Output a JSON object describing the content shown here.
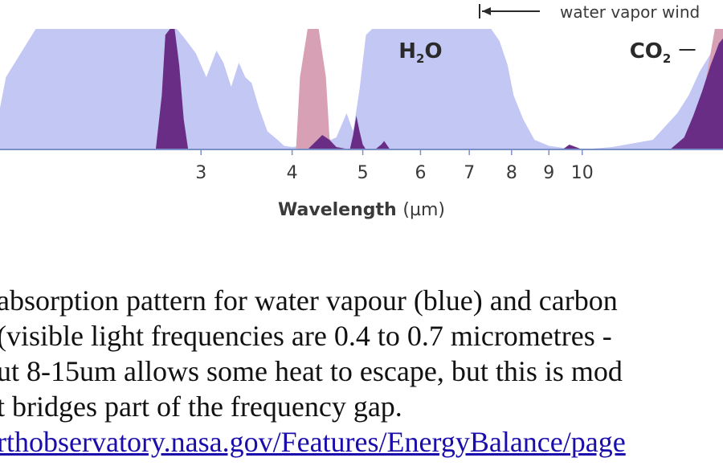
{
  "colors": {
    "water_vapor": "#c3c7f4",
    "co2": "#6a2d86",
    "ozone": "#d8a0b4",
    "baseline": "#7b8fc7",
    "text": "#3a3a3a"
  },
  "chart_data": {
    "type": "area",
    "title": "",
    "xlabel": "Wavelength",
    "xlabel_unit": "(µm)",
    "x_scale": "log",
    "x_ticks": [
      "3",
      "4",
      "5",
      "6",
      "7",
      "8",
      "9",
      "10"
    ],
    "x_tick_values": [
      3,
      4,
      5,
      6,
      7,
      8,
      9,
      10
    ],
    "xlim": [
      1.55,
      16.0
    ],
    "ylim": [
      0,
      1
    ],
    "series": [
      {
        "name": "",
        "color": "#c3c7f4",
        "x": [
          1.55,
          1.62,
          1.78,
          1.95,
          2.1,
          2.3,
          2.45,
          2.55,
          2.65,
          2.72,
          2.78,
          2.85,
          2.95,
          3.05,
          3.15,
          3.22,
          3.3,
          3.38,
          3.45,
          3.52,
          3.6,
          3.7,
          3.82,
          3.9,
          4.0,
          4.4,
          4.6,
          4.75,
          4.85,
          4.95,
          5.05,
          5.15,
          5.25,
          5.35,
          5.6,
          6.5,
          7.2,
          7.5,
          7.7,
          7.9,
          8.05,
          8.3,
          8.6,
          9.0,
          9.5,
          10.0,
          11.0,
          12.5,
          13.5,
          14.0,
          14.5,
          15.2,
          16.0
        ],
        "values": [
          0.0,
          0.6,
          1.0,
          1.0,
          1.0,
          1.0,
          1.0,
          1.0,
          1.0,
          1.0,
          1.0,
          0.92,
          0.8,
          0.6,
          0.82,
          0.72,
          0.52,
          0.72,
          0.6,
          0.55,
          0.35,
          0.15,
          0.08,
          0.03,
          0.02,
          0.05,
          0.1,
          0.3,
          0.15,
          0.5,
          0.95,
          1.0,
          1.0,
          1.0,
          1.0,
          1.0,
          1.0,
          1.0,
          0.9,
          0.7,
          0.45,
          0.25,
          0.08,
          0.03,
          0.01,
          0.0,
          0.02,
          0.08,
          0.3,
          0.45,
          0.65,
          0.85,
          1.0
        ]
      },
      {
        "name": "",
        "color": "#d8a0b4",
        "x": [
          4.05,
          4.1,
          4.2,
          4.35,
          4.45,
          4.5,
          4.55,
          14.3,
          14.8,
          15.2,
          16.0
        ],
        "values": [
          0.0,
          0.6,
          1.0,
          1.0,
          0.6,
          0.1,
          0.0,
          0.0,
          0.6,
          1.0,
          1.0
        ]
      },
      {
        "name": "",
        "color": "#6a2d86",
        "x": [
          2.6,
          2.65,
          2.68,
          2.72,
          2.76,
          2.8,
          2.84,
          2.88,
          4.2,
          4.3,
          4.4,
          4.5,
          4.6,
          4.8,
          4.85,
          4.9,
          4.95,
          5.0,
          5.05,
          5.2,
          5.3,
          5.35,
          5.45,
          9.4,
          9.6,
          9.8,
          10.0,
          13.2,
          13.8,
          14.2,
          14.6,
          15.0,
          15.4,
          16.0
        ],
        "values": [
          0.0,
          0.45,
          0.95,
          1.0,
          1.0,
          0.7,
          0.25,
          0.0,
          0.0,
          0.06,
          0.12,
          0.08,
          0.02,
          0.0,
          0.12,
          0.28,
          0.15,
          0.04,
          0.0,
          0.0,
          0.04,
          0.07,
          0.0,
          0.0,
          0.04,
          0.02,
          0.0,
          0.0,
          0.1,
          0.28,
          0.48,
          0.7,
          0.88,
          1.0
        ]
      }
    ],
    "annotations": [
      {
        "text": "H",
        "sub": "2",
        "text_after": "O",
        "x": 6.0,
        "y": 0.8
      },
      {
        "text": "CO",
        "sub": "2",
        "text_after": "",
        "x": 12.4,
        "y": 0.8
      },
      {
        "text": "water vapor wind",
        "x": 10.5,
        "y": 1.1
      }
    ]
  },
  "caption": {
    "lines": [
      "absorption pattern for water vapour (blue) and carbon",
      " (visible light frequencies are 0.4 to 0.7 micrometres -",
      "ut 8-15um allows some heat to escape, but this is mod",
      "t bridges part of the frequency gap."
    ],
    "link": "rthobservatory.nasa.gov/Features/EnergyBalance/page"
  }
}
